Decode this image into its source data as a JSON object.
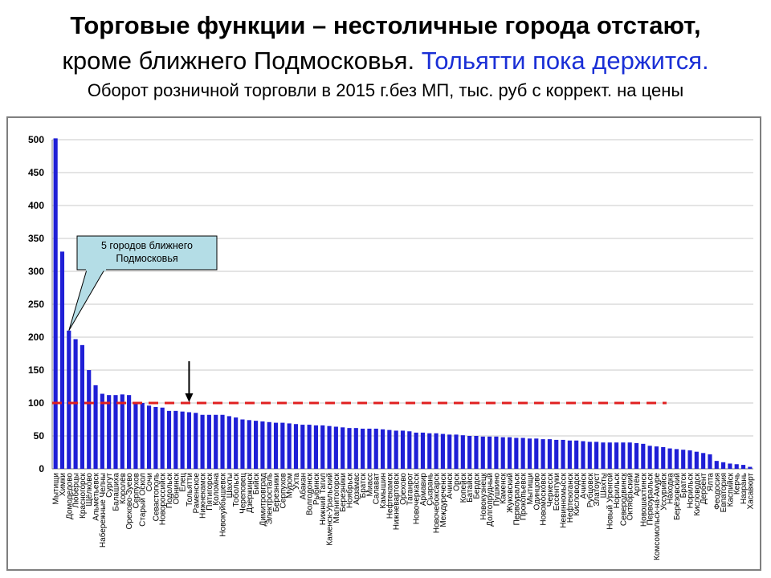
{
  "header": {
    "line1": "Торговые функции – нестоличные города отстают,",
    "line2_black": "кроме ближнего Подмосковья. ",
    "line2_blue": "Тольятти пока держится.",
    "line3": "Оборот розничной торговли в 2015 г.без МП, тыс. руб с коррект. на цены"
  },
  "colors": {
    "bar": "#1f1fd6",
    "reference_line": "#e02020",
    "callout_fill": "#b4dde6",
    "highlight_text": "#1a2fd6"
  },
  "chart_data": {
    "type": "bar",
    "title": "",
    "xlabel": "",
    "ylabel": "",
    "ylim": [
      0,
      500
    ],
    "yticks": [
      0,
      50,
      100,
      150,
      200,
      250,
      300,
      350,
      400,
      450,
      500
    ],
    "grid": "horizontal",
    "categories": [
      "Мытищи",
      "Химки",
      "Домодедово",
      "Люберцы",
      "Красногорск",
      "Щёлково",
      "Альметьевск",
      "Набережные Челны",
      "Сургут",
      "Балашиха",
      "Королёв",
      "Орехово-Зуево",
      "Серпухов",
      "Старый Оскол",
      "Сочи",
      "Севастополь",
      "Новороссийск",
      "Подольск",
      "Обнинск",
      "Елец",
      "Тольятти",
      "Раменское",
      "Нижнекамск",
      "Пятигорск",
      "Коломна",
      "Новокуйбышевск",
      "Шахты",
      "Тобольск",
      "Череповец",
      "Дзержинск",
      "Бийск",
      "Димитровград",
      "Электросталь",
      "Березники",
      "Серпухов",
      "Муром",
      "Ухта",
      "Абакан",
      "Волгодонск",
      "Рыбинск",
      "Нижний Тагил",
      "Каменск-Уральский",
      "Магнитогорск",
      "Березники",
      "Ноябрьск",
      "Арзамас",
      "Братск",
      "Миасс",
      "Салават",
      "Камышин",
      "Нефтекамск",
      "Нижневартовск",
      "Орехово",
      "Таганрог",
      "Новочеркасск",
      "Армавир",
      "Сызрань",
      "Новочебоксарск",
      "Междуреченск",
      "Ачинск",
      "Орск",
      "Копейск",
      "Батайск",
      "Бердск",
      "Новокузнецк",
      "Долгопрудный",
      "Пушкино",
      "Каменск",
      "Жуковский",
      "Первоуральск",
      "Прокопьевск",
      "Мытищи",
      "Одинцово",
      "Новомосковск",
      "Черкесск",
      "Ессентуки",
      "Невинномысск",
      "Нефтеюганск",
      "Кисловодск",
      "Ачинск",
      "Рубцовск",
      "Златоуст",
      "Шахты",
      "Новый Уренгой",
      "Норильск",
      "Северодвинск",
      "Октябрьский",
      "Артём",
      "Новошахтинск",
      "Первоуральск",
      "Комсомольск-на-Амуре",
      "Уссурийск",
      "Находка",
      "Берёзовский",
      "Братск",
      "Норильск",
      "Кисловодск",
      "Дербент",
      "Ялта",
      "Феодосия",
      "Евпатория",
      "Каспийск",
      "Керчь",
      "Назрань",
      "Хасавюрт"
    ],
    "values": [
      502,
      330,
      210,
      197,
      188,
      150,
      127,
      114,
      112,
      112,
      113,
      112,
      101,
      100,
      96,
      94,
      93,
      88,
      88,
      87,
      86,
      85,
      82,
      82,
      82,
      82,
      80,
      78,
      75,
      74,
      73,
      72,
      71,
      70,
      70,
      69,
      68,
      67,
      67,
      66,
      66,
      65,
      64,
      63,
      62,
      62,
      61,
      61,
      61,
      60,
      59,
      58,
      58,
      57,
      55,
      55,
      54,
      54,
      53,
      52,
      52,
      51,
      50,
      50,
      49,
      49,
      49,
      48,
      48,
      47,
      47,
      46,
      46,
      45,
      45,
      44,
      44,
      43,
      43,
      42,
      41,
      41,
      40,
      40,
      40,
      40,
      40,
      39,
      38,
      35,
      34,
      33,
      31,
      30,
      29,
      28,
      26,
      24,
      22,
      12,
      10,
      8,
      7,
      6,
      3
    ],
    "reference_line": {
      "value": 100,
      "style": "dashed"
    },
    "arrow_marker_category_index": 20,
    "annotations": [
      {
        "text": "5 городов ближнего Подмосковья",
        "target_category_index": 2
      }
    ]
  }
}
